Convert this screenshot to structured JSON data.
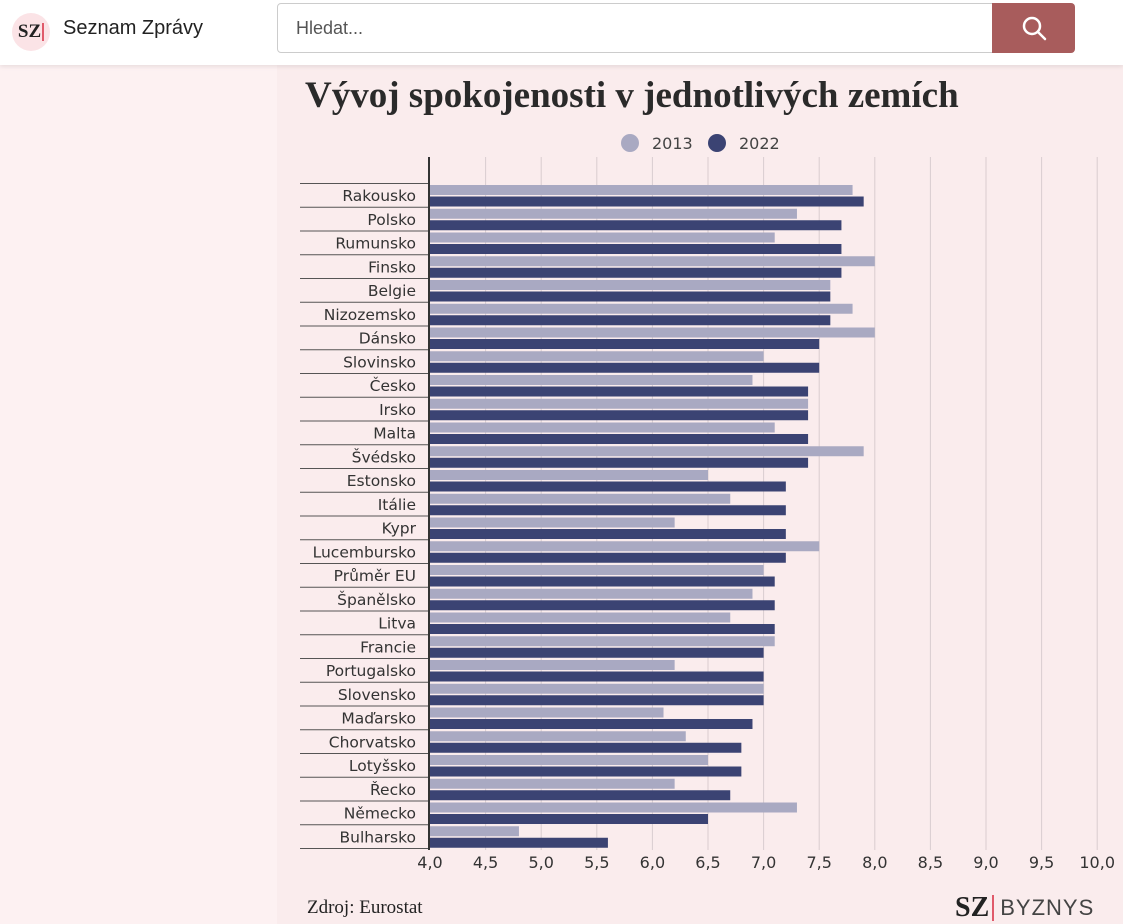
{
  "header": {
    "logo_text": "SZ",
    "brand": "Seznam Zprávy",
    "search_placeholder": "Hledat...",
    "search_icon": "magnifier-icon"
  },
  "footer": {
    "source": "Zdroj: Eurostat",
    "logo_sz": "SZ",
    "logo_byznys": "BYZNYS"
  },
  "colors": {
    "s2013": "#a9a9c2",
    "s2022": "#3b4373",
    "accent": "#a85c5c"
  },
  "chart_data": {
    "type": "bar",
    "orientation": "horizontal",
    "title": "Vývoj spokojenosti v jednotlivých zemích",
    "legend": [
      "2013",
      "2022"
    ],
    "legend_position": "top",
    "xlim": [
      4.0,
      10.0
    ],
    "xticks": [
      "4,0",
      "4,5",
      "5,0",
      "5,5",
      "6,0",
      "6,5",
      "7,0",
      "7,5",
      "8,0",
      "8,5",
      "9,0",
      "9,5",
      "10,0"
    ],
    "grid": true,
    "categories": [
      "Rakousko",
      "Polsko",
      "Rumunsko",
      "Finsko",
      "Belgie",
      "Nizozemsko",
      "Dánsko",
      "Slovinsko",
      "Česko",
      "Irsko",
      "Malta",
      "Švédsko",
      "Estonsko",
      "Itálie",
      "Kypr",
      "Lucembursko",
      "Průměr EU",
      "Španělsko",
      "Litva",
      "Francie",
      "Portugalsko",
      "Slovensko",
      "Maďarsko",
      "Chorvatsko",
      "Lotyšsko",
      "Řecko",
      "Německo",
      "Bulharsko"
    ],
    "series": [
      {
        "name": "2013",
        "values": [
          7.8,
          7.3,
          7.1,
          8.0,
          7.6,
          7.8,
          8.0,
          7.0,
          6.9,
          7.4,
          7.1,
          7.9,
          6.5,
          6.7,
          6.2,
          7.5,
          7.0,
          6.9,
          6.7,
          7.1,
          6.2,
          7.0,
          6.1,
          6.3,
          6.5,
          6.2,
          7.3,
          4.8
        ]
      },
      {
        "name": "2022",
        "values": [
          7.9,
          7.7,
          7.7,
          7.7,
          7.6,
          7.6,
          7.5,
          7.5,
          7.4,
          7.4,
          7.4,
          7.4,
          7.2,
          7.2,
          7.2,
          7.2,
          7.1,
          7.1,
          7.1,
          7.0,
          7.0,
          7.0,
          6.9,
          6.8,
          6.8,
          6.7,
          6.5,
          5.6
        ]
      }
    ]
  }
}
